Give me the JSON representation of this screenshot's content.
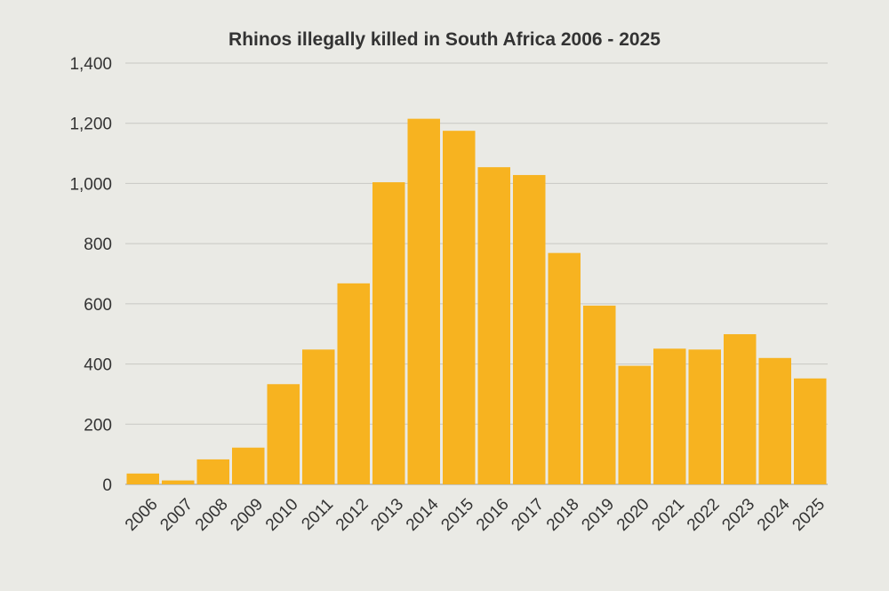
{
  "chart_data": {
    "type": "bar",
    "title": "Rhinos illegally killed in South Africa 2006 - 2025",
    "xlabel": "",
    "ylabel": "",
    "categories": [
      "2006",
      "2007",
      "2008",
      "2009",
      "2010",
      "2011",
      "2012",
      "2013",
      "2014",
      "2015",
      "2016",
      "2017",
      "2018",
      "2019",
      "2020",
      "2021",
      "2022",
      "2023",
      "2024",
      "2025"
    ],
    "values": [
      36,
      13,
      83,
      122,
      333,
      448,
      668,
      1004,
      1215,
      1175,
      1054,
      1028,
      769,
      594,
      394,
      451,
      448,
      499,
      420,
      352
    ],
    "ylim": [
      0,
      1400
    ],
    "yticks": [
      "0",
      "200",
      "400",
      "600",
      "800",
      "1,000",
      "1,200",
      "1,400"
    ],
    "grid": true,
    "legend": "none",
    "colors": {
      "bar": "#f7b320",
      "background": "#eaeae5",
      "grid": "#c8c8c4"
    }
  }
}
